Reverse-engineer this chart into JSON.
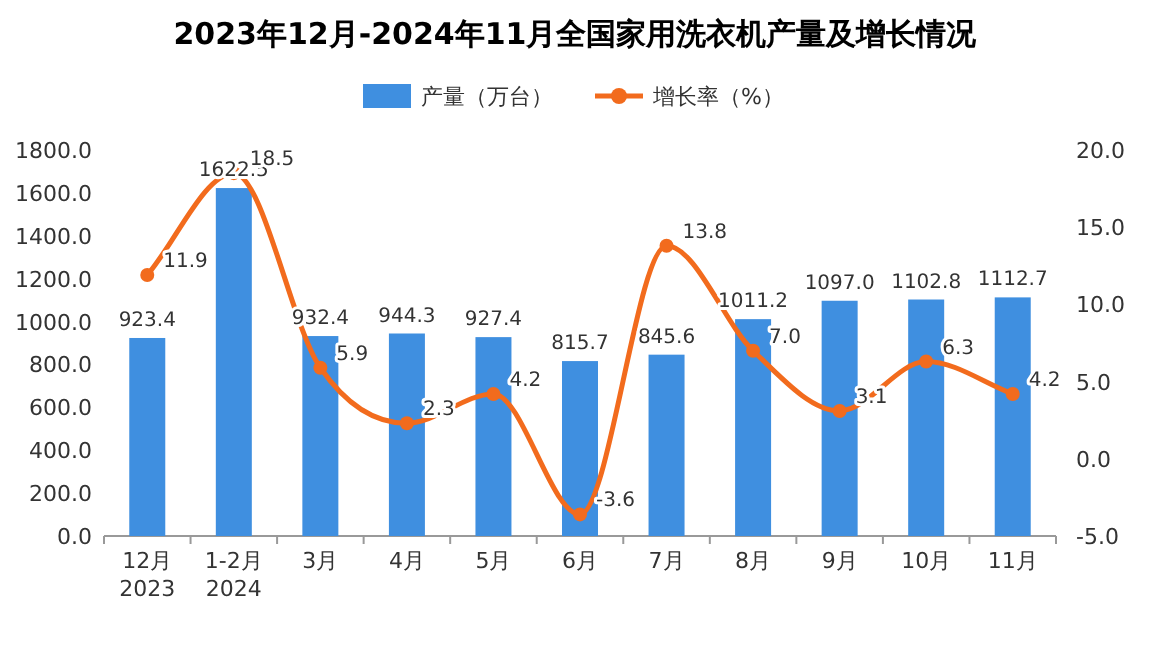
{
  "chart_data": {
    "type": "bar",
    "title": "2023年12月-2024年11月全国家用洗衣机产量及增长情况",
    "categories": [
      "12月\n2023",
      "1-2月\n2024",
      "3月",
      "4月",
      "5月",
      "6月",
      "7月",
      "8月",
      "9月",
      "10月",
      "11月"
    ],
    "series": [
      {
        "name": "产量（万台）",
        "color": "#3f8fe0",
        "values": [
          923.4,
          1622.5,
          932.4,
          944.3,
          927.4,
          815.7,
          845.6,
          1011.2,
          1097.0,
          1102.8,
          1112.7
        ],
        "value_labels": [
          "923.4",
          "1622.5",
          "932.4",
          "944.3",
          "927.4",
          "815.7",
          "845.6",
          "1011.2",
          "1097.0",
          "1102.8",
          "1112.7"
        ]
      },
      {
        "name": "增长率（%）",
        "type": "line",
        "axis": "y2",
        "color": "#f26b1d",
        "marker": "circle",
        "values": [
          11.9,
          18.5,
          5.9,
          2.3,
          4.2,
          -3.6,
          13.8,
          7.0,
          3.1,
          6.3,
          4.2
        ],
        "value_labels": [
          "11.9",
          "18.5",
          "5.9",
          "2.3",
          "4.2",
          "-3.6",
          "13.8",
          "7.0",
          "3.1",
          "6.3",
          "4.2"
        ]
      }
    ],
    "ylim": [
      0,
      1800
    ],
    "yticks": [
      {
        "value": 0,
        "label": "0.0"
      },
      {
        "value": 200,
        "label": "200.0"
      },
      {
        "value": 400,
        "label": "400.0"
      },
      {
        "value": 600,
        "label": "600.0"
      },
      {
        "value": 800,
        "label": "800.0"
      },
      {
        "value": 1000,
        "label": "1000.0"
      },
      {
        "value": 1200,
        "label": "1200.0"
      },
      {
        "value": 1400,
        "label": "1400.0"
      },
      {
        "value": 1600,
        "label": "1600.0"
      },
      {
        "value": 1800,
        "label": "1800.0"
      }
    ],
    "y2lim": [
      -5,
      20
    ],
    "y2ticks": [
      {
        "value": -5,
        "label": "-5.0"
      },
      {
        "value": 0,
        "label": "0.0"
      },
      {
        "value": 5,
        "label": "5.0"
      },
      {
        "value": 10,
        "label": "10.0"
      },
      {
        "value": 15,
        "label": "15.0"
      },
      {
        "value": 20,
        "label": "20.0"
      }
    ],
    "legend": "top"
  }
}
